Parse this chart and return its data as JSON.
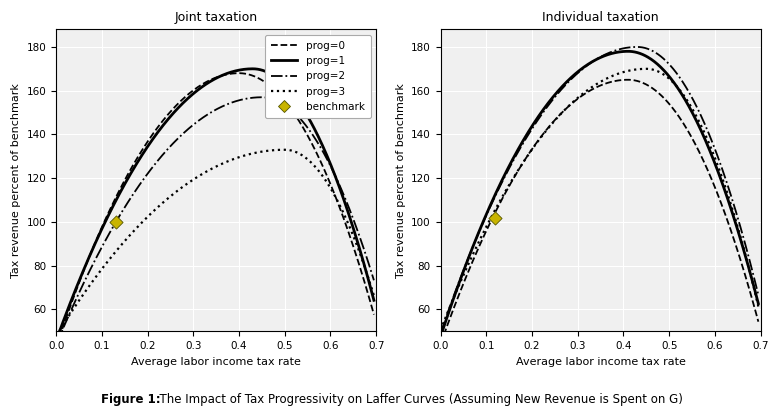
{
  "left_title": "Joint taxation",
  "right_title": "Individual taxation",
  "xlabel": "Average labor income tax rate",
  "ylabel": "Tax revenue percent of benchmark",
  "figure_caption_bold": "Figure 1:",
  "figure_caption_normal": "  The Impact of Tax Progressivity on Laffer Curves (Assuming New Revenue is Spent on G)",
  "ylim": [
    50,
    188
  ],
  "xlim": [
    0.0,
    0.7
  ],
  "xticks": [
    0.0,
    0.1,
    0.2,
    0.3,
    0.4,
    0.5,
    0.6,
    0.7
  ],
  "yticks": [
    60,
    80,
    100,
    120,
    140,
    160,
    180
  ],
  "benchmark_joint": [
    0.13,
    100
  ],
  "benchmark_indiv": [
    0.12,
    102
  ],
  "background_color": "#f0f0f0",
  "grid_color": "#ffffff",
  "lw_thin": 1.3,
  "lw_thick": 2.0
}
